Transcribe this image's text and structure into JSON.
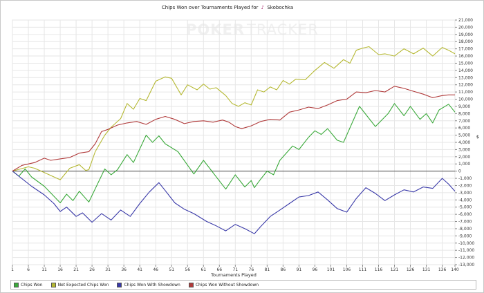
{
  "chart_data": {
    "type": "line",
    "title": "Chips Won over Tournaments Played for",
    "player": "Skobochka",
    "watermark": {
      "poker": "POKER",
      "tracker": "TRACKER"
    },
    "xlabel": "Tournaments Played",
    "ylabel": "$",
    "xlim": [
      1,
      140
    ],
    "ylim": [
      -13000,
      21000
    ],
    "xticks": [
      1,
      6,
      11,
      16,
      21,
      26,
      31,
      36,
      41,
      46,
      51,
      56,
      61,
      66,
      71,
      76,
      81,
      86,
      91,
      96,
      101,
      106,
      111,
      116,
      121,
      126,
      131,
      136,
      140
    ],
    "yticks": [
      21000,
      20000,
      19000,
      18000,
      17000,
      16000,
      15000,
      14000,
      13000,
      12000,
      11000,
      10000,
      9000,
      8000,
      7000,
      6000,
      5000,
      4000,
      3000,
      2000,
      1000,
      0,
      -1000,
      -2000,
      -3000,
      -4000,
      -5000,
      -6000,
      -7000,
      -8000,
      -9000,
      -10000,
      -11000,
      -12000,
      -13000
    ],
    "grid": true,
    "legend": "bottom",
    "series": [
      {
        "name": "Chips Won",
        "color": "#3aa93a",
        "points": [
          [
            1,
            0
          ],
          [
            3,
            -700
          ],
          [
            5,
            300
          ],
          [
            7,
            -800
          ],
          [
            11,
            -2100
          ],
          [
            16,
            -4400
          ],
          [
            18,
            -3200
          ],
          [
            20,
            -4100
          ],
          [
            22,
            -2800
          ],
          [
            25,
            -4300
          ],
          [
            30,
            300
          ],
          [
            32,
            -500
          ],
          [
            34,
            200
          ],
          [
            37,
            2300
          ],
          [
            39,
            1200
          ],
          [
            43,
            5000
          ],
          [
            45,
            4000
          ],
          [
            47,
            4900
          ],
          [
            49,
            3800
          ],
          [
            53,
            2700
          ],
          [
            58,
            -400
          ],
          [
            61,
            1500
          ],
          [
            68,
            -2500
          ],
          [
            71,
            -500
          ],
          [
            74,
            -2200
          ],
          [
            76,
            -1300
          ],
          [
            77,
            -2300
          ],
          [
            79,
            -1100
          ],
          [
            81,
            0
          ],
          [
            83,
            -500
          ],
          [
            85,
            1500
          ],
          [
            87,
            2500
          ],
          [
            89,
            3500
          ],
          [
            91,
            3000
          ],
          [
            94,
            4700
          ],
          [
            96,
            5600
          ],
          [
            98,
            5100
          ],
          [
            100,
            5900
          ],
          [
            103,
            4300
          ],
          [
            105,
            4000
          ],
          [
            110,
            9000
          ],
          [
            115,
            6200
          ],
          [
            119,
            8000
          ],
          [
            121,
            9400
          ],
          [
            124,
            7700
          ],
          [
            126,
            9000
          ],
          [
            129,
            7200
          ],
          [
            131,
            8000
          ],
          [
            133,
            6700
          ],
          [
            135,
            8500
          ],
          [
            138,
            9300
          ],
          [
            140,
            8200
          ]
        ]
      },
      {
        "name": "Net Expected Chips Won",
        "color": "#b5b832",
        "points": [
          [
            1,
            0
          ],
          [
            6,
            600
          ],
          [
            8,
            400
          ],
          [
            12,
            -400
          ],
          [
            16,
            -1200
          ],
          [
            19,
            400
          ],
          [
            22,
            900
          ],
          [
            24,
            100
          ],
          [
            25,
            200
          ],
          [
            27,
            2700
          ],
          [
            30,
            5000
          ],
          [
            32,
            6100
          ],
          [
            35,
            7300
          ],
          [
            37,
            9400
          ],
          [
            39,
            8600
          ],
          [
            41,
            10100
          ],
          [
            43,
            9800
          ],
          [
            46,
            12500
          ],
          [
            49,
            13100
          ],
          [
            51,
            12900
          ],
          [
            54,
            10600
          ],
          [
            56,
            12000
          ],
          [
            59,
            11300
          ],
          [
            61,
            12100
          ],
          [
            63,
            11400
          ],
          [
            65,
            11600
          ],
          [
            68,
            10500
          ],
          [
            70,
            9400
          ],
          [
            72,
            9000
          ],
          [
            74,
            9500
          ],
          [
            76,
            9200
          ],
          [
            78,
            11300
          ],
          [
            80,
            11000
          ],
          [
            82,
            11700
          ],
          [
            84,
            11300
          ],
          [
            86,
            12600
          ],
          [
            88,
            12100
          ],
          [
            90,
            12800
          ],
          [
            93,
            12700
          ],
          [
            96,
            14000
          ],
          [
            99,
            15100
          ],
          [
            102,
            14300
          ],
          [
            105,
            15500
          ],
          [
            107,
            15000
          ],
          [
            109,
            16800
          ],
          [
            111,
            17100
          ],
          [
            113,
            17300
          ],
          [
            116,
            16200
          ],
          [
            118,
            16300
          ],
          [
            121,
            16000
          ],
          [
            124,
            17000
          ],
          [
            127,
            16300
          ],
          [
            130,
            17100
          ],
          [
            133,
            16000
          ],
          [
            136,
            17200
          ],
          [
            138,
            16800
          ],
          [
            140,
            16300
          ]
        ]
      },
      {
        "name": "Chips Won With Showdown",
        "color": "#3939a8",
        "points": [
          [
            1,
            0
          ],
          [
            3,
            -700
          ],
          [
            7,
            -2100
          ],
          [
            11,
            -3300
          ],
          [
            14,
            -4500
          ],
          [
            16,
            -5600
          ],
          [
            18,
            -5000
          ],
          [
            21,
            -6300
          ],
          [
            23,
            -5800
          ],
          [
            26,
            -7100
          ],
          [
            29,
            -5900
          ],
          [
            32,
            -6800
          ],
          [
            35,
            -5400
          ],
          [
            38,
            -6300
          ],
          [
            41,
            -4500
          ],
          [
            44,
            -2900
          ],
          [
            47,
            -1600
          ],
          [
            49,
            -2700
          ],
          [
            52,
            -4400
          ],
          [
            55,
            -5300
          ],
          [
            58,
            -5900
          ],
          [
            62,
            -7000
          ],
          [
            65,
            -7600
          ],
          [
            68,
            -8300
          ],
          [
            71,
            -7400
          ],
          [
            74,
            -8000
          ],
          [
            77,
            -8700
          ],
          [
            79,
            -7700
          ],
          [
            82,
            -6300
          ],
          [
            85,
            -5400
          ],
          [
            88,
            -4500
          ],
          [
            91,
            -3600
          ],
          [
            94,
            -3400
          ],
          [
            97,
            -2900
          ],
          [
            100,
            -4000
          ],
          [
            103,
            -5200
          ],
          [
            106,
            -5700
          ],
          [
            109,
            -3800
          ],
          [
            112,
            -2300
          ],
          [
            115,
            -3100
          ],
          [
            118,
            -4100
          ],
          [
            121,
            -3300
          ],
          [
            124,
            -2600
          ],
          [
            127,
            -2900
          ],
          [
            130,
            -2200
          ],
          [
            133,
            -2400
          ],
          [
            136,
            -1000
          ],
          [
            138,
            -1800
          ],
          [
            140,
            -2800
          ]
        ]
      },
      {
        "name": "Chips Won Without Showdown",
        "color": "#b03a3a",
        "points": [
          [
            1,
            0
          ],
          [
            4,
            800
          ],
          [
            8,
            1200
          ],
          [
            11,
            1800
          ],
          [
            13,
            1500
          ],
          [
            16,
            1700
          ],
          [
            19,
            1900
          ],
          [
            22,
            2500
          ],
          [
            25,
            2700
          ],
          [
            27,
            3800
          ],
          [
            29,
            5500
          ],
          [
            31,
            5800
          ],
          [
            34,
            6400
          ],
          [
            37,
            6700
          ],
          [
            40,
            6900
          ],
          [
            43,
            6500
          ],
          [
            46,
            7200
          ],
          [
            49,
            7600
          ],
          [
            52,
            7200
          ],
          [
            55,
            6600
          ],
          [
            58,
            6900
          ],
          [
            61,
            7000
          ],
          [
            64,
            6800
          ],
          [
            67,
            7100
          ],
          [
            69,
            6800
          ],
          [
            71,
            6200
          ],
          [
            73,
            5900
          ],
          [
            76,
            6300
          ],
          [
            79,
            6900
          ],
          [
            82,
            7200
          ],
          [
            85,
            7100
          ],
          [
            88,
            8200
          ],
          [
            91,
            8500
          ],
          [
            94,
            8900
          ],
          [
            97,
            8700
          ],
          [
            100,
            9200
          ],
          [
            103,
            9800
          ],
          [
            106,
            10000
          ],
          [
            109,
            11000
          ],
          [
            112,
            10900
          ],
          [
            115,
            11200
          ],
          [
            118,
            11000
          ],
          [
            121,
            11800
          ],
          [
            124,
            11500
          ],
          [
            127,
            11100
          ],
          [
            130,
            10700
          ],
          [
            133,
            10200
          ],
          [
            136,
            10500
          ],
          [
            138,
            10600
          ],
          [
            140,
            10600
          ]
        ]
      }
    ]
  }
}
